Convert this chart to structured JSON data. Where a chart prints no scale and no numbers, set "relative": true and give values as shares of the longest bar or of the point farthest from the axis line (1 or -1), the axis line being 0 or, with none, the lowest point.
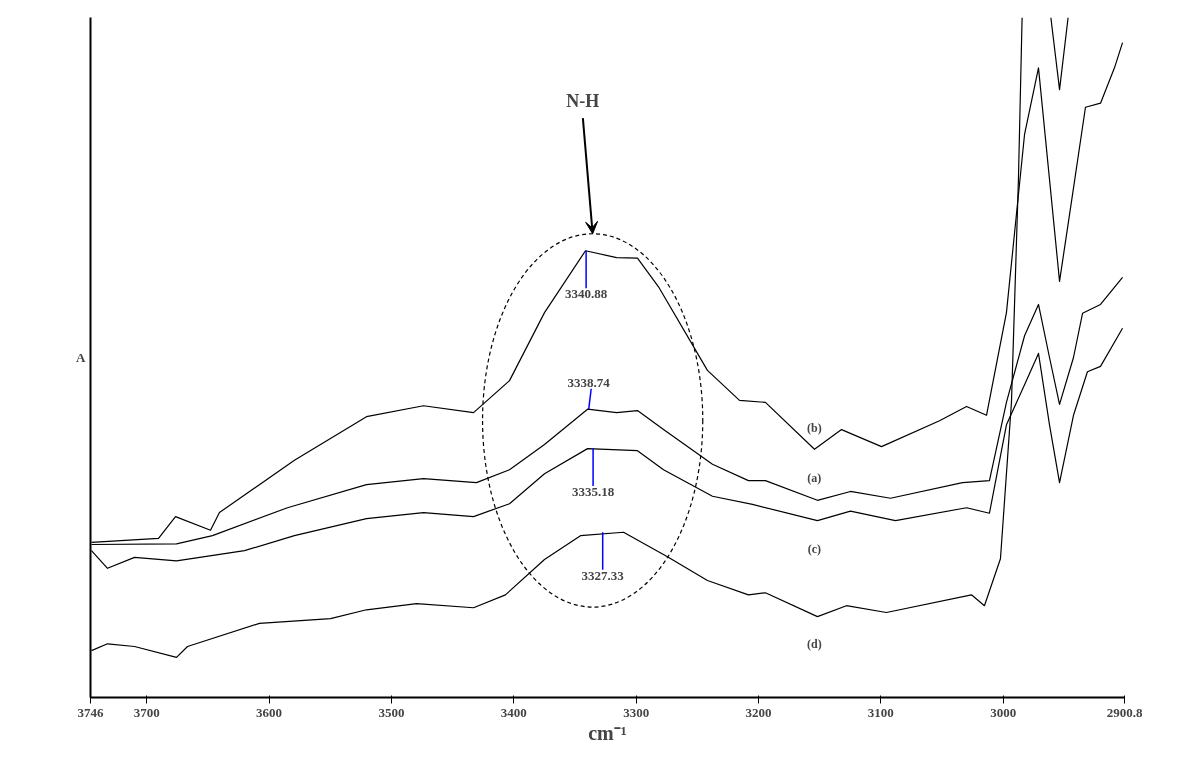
{
  "chart_data": {
    "type": "line",
    "relative": true,
    "xlabel": "cm⁻¹",
    "ylabel": "A",
    "xlim": [
      3746,
      2900.8
    ],
    "xticks": [
      3746,
      3700,
      3600,
      3500,
      3400,
      3300,
      3200,
      3100,
      3000,
      2900.8
    ],
    "grid": false,
    "marker": "none",
    "line_style": "solid",
    "series": [
      {
        "name": "(b)",
        "color": "#000000",
        "x": [
          3745.2,
          3690.4,
          3676.5,
          3647.9,
          3640.6,
          3579.3,
          3520.4,
          3473.8,
          3432.9,
          3403.5,
          3374.9,
          3341.4,
          3316.0,
          3298.9,
          3281.7,
          3241.7,
          3215.5,
          3194.3,
          3154.2,
          3132.1,
          3099.4,
          3052.0,
          3029.9,
          3013.6,
          2997.3,
          2982.5,
          2971.1,
          2962.1,
          2953.9,
          2942.5,
          2932.7,
          2920.4,
          2909.0,
          2902.4
        ],
        "values": [
          0.228,
          0.234,
          0.266,
          0.246,
          0.272,
          0.349,
          0.413,
          0.429,
          0.419,
          0.466,
          0.566,
          0.657,
          0.647,
          0.646,
          0.604,
          0.481,
          0.437,
          0.434,
          0.365,
          0.394,
          0.369,
          0.407,
          0.428,
          0.415,
          0.566,
          0.828,
          0.926,
          0.762,
          0.612,
          0.749,
          0.868,
          0.874,
          0.926,
          0.963
        ]
      },
      {
        "name": "(a)",
        "color": "#000000",
        "x": [
          3745.2,
          3675.7,
          3646.3,
          3585.0,
          3520.4,
          3473.8,
          3430.5,
          3403.5,
          3374.9,
          3339.7,
          3316.0,
          3298.9,
          3277.6,
          3237.6,
          3208.2,
          3194.3,
          3151.8,
          3124.8,
          3092.1,
          3033.2,
          3011.2,
          2997.3,
          2982.5,
          2971.1,
          2962.1,
          2953.9,
          2942.5,
          2935.1,
          2920.4,
          2902.4
        ],
        "values": [
          0.225,
          0.226,
          0.238,
          0.279,
          0.313,
          0.322,
          0.316,
          0.335,
          0.372,
          0.424,
          0.419,
          0.422,
          0.394,
          0.343,
          0.319,
          0.319,
          0.29,
          0.303,
          0.293,
          0.316,
          0.319,
          0.434,
          0.532,
          0.578,
          0.5,
          0.431,
          0.5,
          0.565,
          0.578,
          0.618
        ]
      },
      {
        "name": "(c)",
        "color": "#000000",
        "x": [
          3745.2,
          3732.1,
          3710.0,
          3675.7,
          3620.1,
          3579.3,
          3520.4,
          3473.8,
          3432.9,
          3403.5,
          3374.9,
          3339.7,
          3298.9,
          3277.6,
          3237.6,
          3204.9,
          3151.8,
          3124.8,
          3088.0,
          3029.9,
          3011.2,
          2997.3,
          2982.5,
          2971.1,
          2962.1,
          2953.9,
          2942.5,
          2931.1,
          2920.4,
          2902.4
        ],
        "values": [
          0.216,
          0.19,
          0.206,
          0.201,
          0.216,
          0.238,
          0.263,
          0.272,
          0.266,
          0.285,
          0.329,
          0.366,
          0.363,
          0.335,
          0.296,
          0.284,
          0.26,
          0.274,
          0.26,
          0.279,
          0.271,
          0.401,
          0.46,
          0.506,
          0.401,
          0.316,
          0.415,
          0.479,
          0.487,
          0.543
        ]
      },
      {
        "name": "(d)",
        "color": "#000000",
        "x": [
          3745.2,
          3732.1,
          3710.0,
          3675.7,
          3666.7,
          3607.9,
          3549.8,
          3520.4,
          3479.5,
          3432.9,
          3406.8,
          3374.9,
          3345.5,
          3310.3,
          3274.4,
          3241.7,
          3208.2,
          3194.3,
          3151.8,
          3128.1,
          3095.4,
          3025.9,
          3015.3,
          3002.2,
          2993.2,
          2987.5,
          2984.5,
          2972.0,
          2961.0,
          2953.9,
          2946.9
        ],
        "values": [
          0.069,
          0.079,
          0.075,
          0.059,
          0.075,
          0.109,
          0.116,
          0.129,
          0.138,
          0.132,
          0.151,
          0.203,
          0.238,
          0.243,
          0.207,
          0.172,
          0.151,
          0.154,
          0.119,
          0.135,
          0.125,
          0.151,
          0.135,
          0.204,
          0.434,
          0.762,
          1.0,
          null,
          1.0,
          0.894,
          1.0
        ]
      }
    ],
    "annotations": [
      "N-H",
      {
        "text": "3340.88",
        "x": 3340.88,
        "y": 0.657
      },
      {
        "text": "3338.74",
        "x": 3338.74,
        "y": 0.424
      },
      {
        "text": "3335.18",
        "x": 3335.18,
        "y": 0.366
      },
      {
        "text": "3327.33",
        "x": 3327.33,
        "y": 0.243
      }
    ]
  }
}
